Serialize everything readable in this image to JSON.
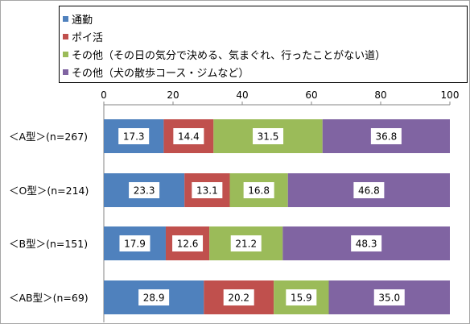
{
  "chart_data": {
    "type": "bar",
    "orientation": "horizontal",
    "stacked": true,
    "categories": [
      "＜A型＞(n=267)",
      "＜O型＞(n=214)",
      "＜B型＞(n=151)",
      "＜AB型＞(n=69)"
    ],
    "series": [
      {
        "name": "通勤",
        "color": "#4f81bd",
        "values": [
          17.3,
          23.3,
          17.9,
          28.9
        ]
      },
      {
        "name": "ポイ活",
        "color": "#c0504d",
        "values": [
          14.4,
          13.1,
          12.6,
          20.2
        ]
      },
      {
        "name": "その他（その日の気分で決める、気まぐれ、行ったことがない道）",
        "color": "#9bbb59",
        "values": [
          31.5,
          16.8,
          21.2,
          15.9
        ]
      },
      {
        "name": "その他（犬の散歩コース・ジムなど）",
        "color": "#8064a2",
        "values": [
          36.8,
          46.8,
          48.3,
          35.0
        ]
      }
    ],
    "x_ticks": [
      "0",
      "20",
      "40",
      "60",
      "80",
      "100"
    ],
    "xlim": [
      0,
      100
    ],
    "grid": false,
    "legend_position": "top",
    "data_labels": [
      "17.3",
      "14.4",
      "31.5",
      "36.8",
      "23.3",
      "13.1",
      "16.8",
      "46.8",
      "17.9",
      "12.6",
      "21.2",
      "48.3",
      "28.9",
      "20.2",
      "15.9",
      "35.0"
    ]
  }
}
